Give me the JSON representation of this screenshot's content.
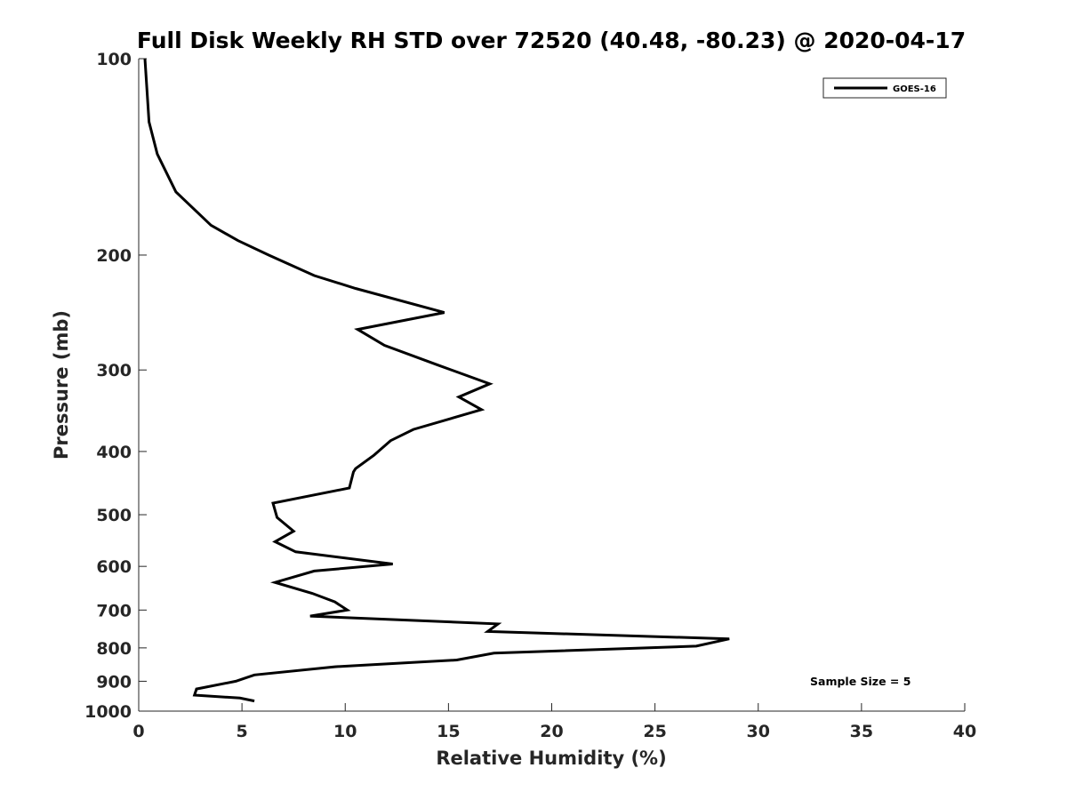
{
  "chart_data": {
    "type": "line",
    "title": "Full Disk Weekly RH STD over 72520 (40.48, -80.23) @ 2020-04-17",
    "xlabel": "Relative Humidity (%)",
    "ylabel": "Pressure (mb)",
    "xlim": [
      0,
      40
    ],
    "ylim": [
      100,
      1000
    ],
    "yscale": "log",
    "y_reversed": true,
    "xticks": [
      0,
      5,
      10,
      15,
      20,
      25,
      30,
      35,
      40
    ],
    "yticks": [
      100,
      200,
      300,
      400,
      500,
      600,
      700,
      800,
      900,
      1000
    ],
    "grid": false,
    "legend_position": "top-right",
    "series": [
      {
        "name": "GOES-16",
        "color": "#000000",
        "x": [
          0.3,
          0.5,
          0.9,
          1.8,
          3.5,
          4.8,
          6.3,
          8.5,
          10.5,
          14.8,
          10.6,
          11.9,
          14.5,
          17.0,
          15.5,
          16.6,
          13.3,
          12.2,
          11.4,
          10.5,
          10.4,
          10.2,
          6.5,
          6.7,
          7.5,
          6.6,
          7.6,
          12.3,
          8.5,
          6.6,
          8.4,
          9.5,
          10.1,
          8.3,
          17.4,
          16.9,
          28.6,
          27.0,
          17.2,
          15.4,
          9.5,
          5.6,
          4.7,
          2.8,
          2.7,
          4.9,
          5.6
        ],
        "y": [
          100,
          125,
          140,
          160,
          180,
          190,
          200,
          215,
          225,
          245,
          260,
          275,
          295,
          315,
          330,
          345,
          370,
          385,
          405,
          425,
          430,
          455,
          480,
          505,
          530,
          550,
          570,
          595,
          610,
          635,
          660,
          680,
          700,
          715,
          735,
          755,
          775,
          795,
          815,
          835,
          855,
          880,
          900,
          925,
          945,
          955,
          965
        ]
      }
    ],
    "annotation": "Sample Size = 5"
  }
}
